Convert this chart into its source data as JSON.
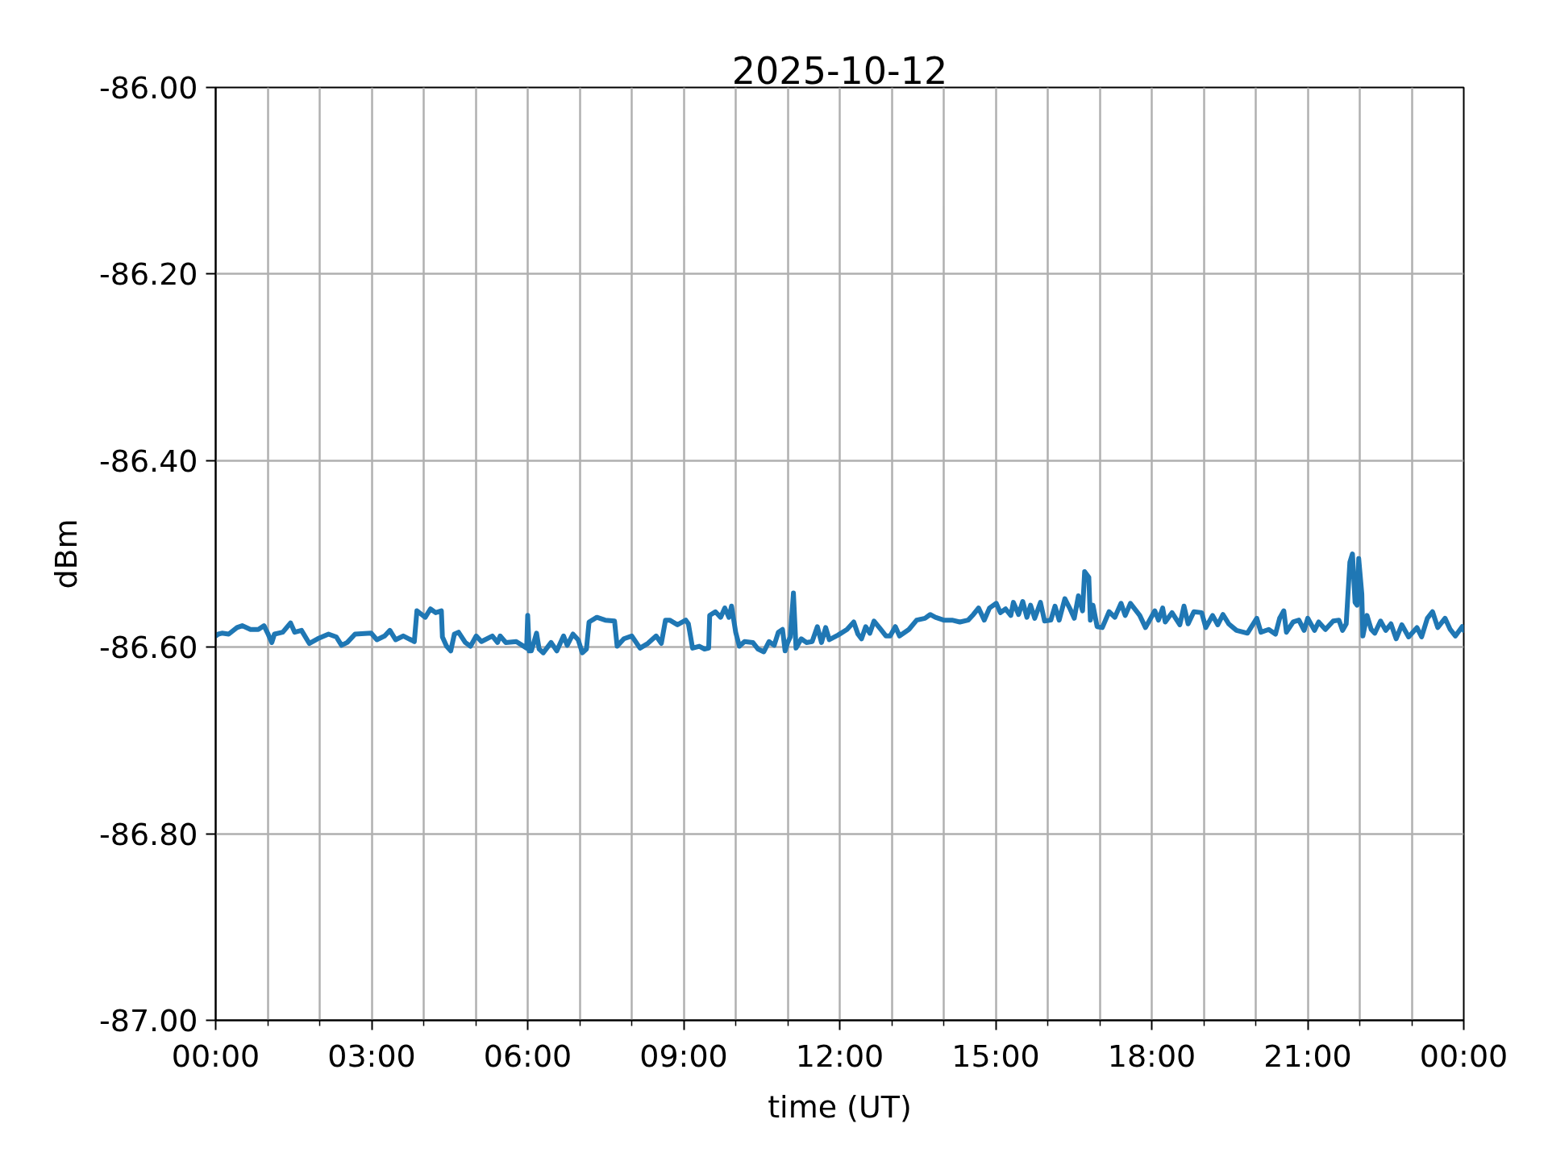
{
  "chart_data": {
    "type": "line",
    "title": "2025-10-12",
    "xlabel": "time (UT)",
    "ylabel": "dBm",
    "xlim": [
      0,
      24
    ],
    "ylim": [
      -87.0,
      -86.0
    ],
    "xticks": [
      {
        "value": 0,
        "label": "00:00"
      },
      {
        "value": 1,
        "label": null
      },
      {
        "value": 2,
        "label": null
      },
      {
        "value": 3,
        "label": "03:00"
      },
      {
        "value": 4,
        "label": null
      },
      {
        "value": 5,
        "label": null
      },
      {
        "value": 6,
        "label": "06:00"
      },
      {
        "value": 7,
        "label": null
      },
      {
        "value": 8,
        "label": null
      },
      {
        "value": 9,
        "label": "09:00"
      },
      {
        "value": 10,
        "label": null
      },
      {
        "value": 11,
        "label": null
      },
      {
        "value": 12,
        "label": "12:00"
      },
      {
        "value": 13,
        "label": null
      },
      {
        "value": 14,
        "label": null
      },
      {
        "value": 15,
        "label": "15:00"
      },
      {
        "value": 16,
        "label": null
      },
      {
        "value": 17,
        "label": null
      },
      {
        "value": 18,
        "label": "18:00"
      },
      {
        "value": 19,
        "label": null
      },
      {
        "value": 20,
        "label": null
      },
      {
        "value": 21,
        "label": "21:00"
      },
      {
        "value": 22,
        "label": null
      },
      {
        "value": 23,
        "label": null
      },
      {
        "value": 24,
        "label": "00:00"
      }
    ],
    "yticks": [
      {
        "value": -87.0,
        "label": "-87.00"
      },
      {
        "value": -86.8,
        "label": "-86.80"
      },
      {
        "value": -86.6,
        "label": "-86.60"
      },
      {
        "value": -86.4,
        "label": "-86.40"
      },
      {
        "value": -86.2,
        "label": "-86.20"
      },
      {
        "value": -86.0,
        "label": "-86.00"
      }
    ],
    "grid": true,
    "line_style": "solid",
    "series": [
      {
        "color": "#1f77b4",
        "x": [
          0.0,
          0.05,
          0.12,
          0.25,
          0.41,
          0.51,
          0.67,
          0.82,
          0.93,
          1.0,
          1.08,
          1.13,
          1.29,
          1.44,
          1.52,
          1.65,
          1.8,
          1.96,
          2.17,
          2.32,
          2.42,
          2.53,
          2.68,
          2.99,
          3.1,
          3.25,
          3.35,
          3.46,
          3.61,
          3.82,
          3.87,
          4.03,
          4.13,
          4.23,
          4.34,
          4.36,
          4.44,
          4.52,
          4.59,
          4.67,
          4.8,
          4.9,
          5.01,
          5.11,
          5.32,
          5.42,
          5.47,
          5.58,
          5.78,
          5.98,
          6.0,
          6.03,
          6.07,
          6.17,
          6.22,
          6.3,
          6.45,
          6.56,
          6.69,
          6.76,
          6.87,
          6.97,
          7.05,
          7.13,
          7.18,
          7.33,
          7.49,
          7.67,
          7.72,
          7.85,
          8.0,
          8.16,
          8.31,
          8.47,
          8.57,
          8.65,
          8.73,
          8.88,
          9.04,
          9.09,
          9.17,
          9.3,
          9.4,
          9.48,
          9.5,
          9.61,
          9.71,
          9.79,
          9.87,
          9.92,
          10.0,
          10.07,
          10.17,
          10.33,
          10.43,
          10.54,
          10.64,
          10.74,
          10.82,
          10.9,
          10.95,
          11.0,
          11.05,
          11.11,
          11.16,
          11.26,
          11.36,
          11.47,
          11.57,
          11.65,
          11.73,
          11.8,
          11.97,
          12.14,
          12.27,
          12.35,
          12.42,
          12.5,
          12.58,
          12.66,
          12.79,
          12.89,
          12.97,
          13.07,
          13.15,
          13.33,
          13.48,
          13.64,
          13.74,
          13.84,
          14.0,
          14.16,
          14.31,
          14.47,
          14.57,
          14.67,
          14.78,
          14.88,
          15.01,
          15.09,
          15.19,
          15.29,
          15.34,
          15.44,
          15.52,
          15.6,
          15.67,
          15.75,
          15.86,
          15.94,
          16.06,
          16.14,
          16.22,
          16.33,
          16.43,
          16.51,
          16.59,
          16.67,
          16.71,
          16.79,
          16.82,
          16.87,
          16.95,
          17.05,
          17.18,
          17.29,
          17.41,
          17.49,
          17.59,
          17.77,
          17.88,
          18.06,
          18.13,
          18.21,
          18.26,
          18.39,
          18.54,
          18.62,
          18.7,
          18.81,
          18.96,
          19.04,
          19.17,
          19.27,
          19.37,
          19.48,
          19.63,
          19.84,
          20.02,
          20.1,
          20.25,
          20.38,
          20.46,
          20.54,
          20.59,
          20.72,
          20.83,
          20.93,
          21.0,
          21.13,
          21.21,
          21.34,
          21.49,
          21.6,
          21.67,
          21.74,
          21.81,
          21.86,
          21.91,
          21.95,
          21.98,
          22.04,
          22.06,
          22.14,
          22.22,
          22.29,
          22.4,
          22.5,
          22.6,
          22.7,
          22.81,
          22.94,
          23.1,
          23.19,
          23.3,
          23.4,
          23.5,
          23.64,
          23.74,
          23.84,
          23.97,
          24.0
        ],
        "values": [
          -86.588,
          -86.586,
          -86.585,
          -86.586,
          -86.579,
          -86.577,
          -86.581,
          -86.581,
          -86.577,
          -86.585,
          -86.595,
          -86.586,
          -86.584,
          -86.574,
          -86.584,
          -86.582,
          -86.596,
          -86.591,
          -86.586,
          -86.589,
          -86.598,
          -86.595,
          -86.586,
          -86.585,
          -86.592,
          -86.588,
          -86.582,
          -86.592,
          -86.588,
          -86.594,
          -86.561,
          -86.568,
          -86.559,
          -86.563,
          -86.561,
          -86.589,
          -86.599,
          -86.604,
          -86.586,
          -86.584,
          -86.595,
          -86.599,
          -86.588,
          -86.594,
          -86.588,
          -86.595,
          -86.588,
          -86.595,
          -86.594,
          -86.601,
          -86.566,
          -86.604,
          -86.604,
          -86.585,
          -86.602,
          -86.606,
          -86.595,
          -86.604,
          -86.588,
          -86.598,
          -86.586,
          -86.592,
          -86.606,
          -86.602,
          -86.573,
          -86.568,
          -86.571,
          -86.572,
          -86.599,
          -86.591,
          -86.588,
          -86.601,
          -86.596,
          -86.588,
          -86.596,
          -86.571,
          -86.571,
          -86.576,
          -86.571,
          -86.575,
          -86.601,
          -86.599,
          -86.602,
          -86.601,
          -86.566,
          -86.562,
          -86.568,
          -86.558,
          -86.568,
          -86.556,
          -86.584,
          -86.599,
          -86.594,
          -86.595,
          -86.602,
          -86.605,
          -86.594,
          -86.598,
          -86.584,
          -86.581,
          -86.604,
          -86.595,
          -86.589,
          -86.542,
          -86.601,
          -86.591,
          -86.595,
          -86.594,
          -86.578,
          -86.595,
          -86.579,
          -86.592,
          -86.587,
          -86.581,
          -86.573,
          -86.586,
          -86.591,
          -86.578,
          -86.585,
          -86.572,
          -86.581,
          -86.588,
          -86.588,
          -86.578,
          -86.588,
          -86.581,
          -86.571,
          -86.569,
          -86.565,
          -86.568,
          -86.571,
          -86.571,
          -86.573,
          -86.571,
          -86.565,
          -86.558,
          -86.571,
          -86.558,
          -86.553,
          -86.563,
          -86.559,
          -86.566,
          -86.552,
          -86.565,
          -86.551,
          -86.568,
          -86.555,
          -86.569,
          -86.552,
          -86.572,
          -86.571,
          -86.556,
          -86.571,
          -86.548,
          -86.559,
          -86.569,
          -86.545,
          -86.561,
          -86.519,
          -86.525,
          -86.571,
          -86.555,
          -86.578,
          -86.579,
          -86.562,
          -86.568,
          -86.553,
          -86.566,
          -86.553,
          -86.566,
          -86.579,
          -86.561,
          -86.571,
          -86.558,
          -86.573,
          -86.563,
          -86.576,
          -86.556,
          -86.575,
          -86.562,
          -86.563,
          -86.579,
          -86.566,
          -86.576,
          -86.565,
          -86.575,
          -86.582,
          -86.585,
          -86.569,
          -86.584,
          -86.581,
          -86.586,
          -86.569,
          -86.561,
          -86.584,
          -86.573,
          -86.571,
          -86.582,
          -86.569,
          -86.582,
          -86.573,
          -86.581,
          -86.572,
          -86.571,
          -86.582,
          -86.575,
          -86.509,
          -86.5,
          -86.552,
          -86.555,
          -86.505,
          -86.543,
          -86.588,
          -86.566,
          -86.581,
          -86.585,
          -86.572,
          -86.582,
          -86.575,
          -86.591,
          -86.576,
          -86.589,
          -86.579,
          -86.589,
          -86.569,
          -86.562,
          -86.579,
          -86.569,
          -86.581,
          -86.588,
          -86.578,
          -86.582
        ]
      }
    ]
  }
}
